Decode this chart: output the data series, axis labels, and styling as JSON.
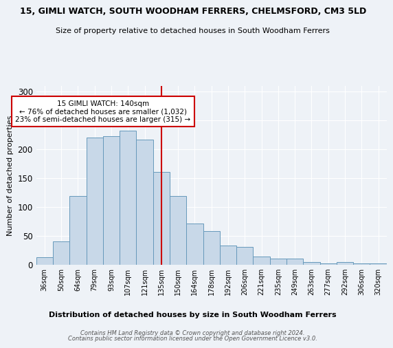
{
  "title": "15, GIMLI WATCH, SOUTH WOODHAM FERRERS, CHELMSFORD, CM3 5LD",
  "subtitle": "Size of property relative to detached houses in South Woodham Ferrers",
  "xlabel": "Distribution of detached houses by size in South Woodham Ferrers",
  "ylabel": "Number of detached properties",
  "bar_labels": [
    "36sqm",
    "50sqm",
    "64sqm",
    "79sqm",
    "93sqm",
    "107sqm",
    "121sqm",
    "135sqm",
    "150sqm",
    "164sqm",
    "178sqm",
    "192sqm",
    "206sqm",
    "221sqm",
    "235sqm",
    "249sqm",
    "263sqm",
    "277sqm",
    "292sqm",
    "306sqm",
    "320sqm"
  ],
  "bar_values": [
    13,
    40,
    119,
    220,
    222,
    232,
    217,
    160,
    119,
    71,
    58,
    33,
    30,
    14,
    10,
    10,
    4,
    2,
    4,
    2,
    2
  ],
  "bar_color": "#c8d8e8",
  "bar_edge_color": "#6699bb",
  "highlight_label": "135sqm",
  "highlight_line_color": "#cc0000",
  "annotation_title": "15 GIMLI WATCH: 140sqm",
  "annotation_line1": "← 76% of detached houses are smaller (1,032)",
  "annotation_line2": "23% of semi-detached houses are larger (315) →",
  "annotation_box_color": "#cc0000",
  "ylim": [
    0,
    310
  ],
  "yticks": [
    0,
    50,
    100,
    150,
    200,
    250,
    300
  ],
  "footer1": "Contains HM Land Registry data © Crown copyright and database right 2024.",
  "footer2": "Contains public sector information licensed under the Open Government Licence v3.0.",
  "bg_color": "#eef2f7",
  "plot_bg_color": "#eef2f7"
}
